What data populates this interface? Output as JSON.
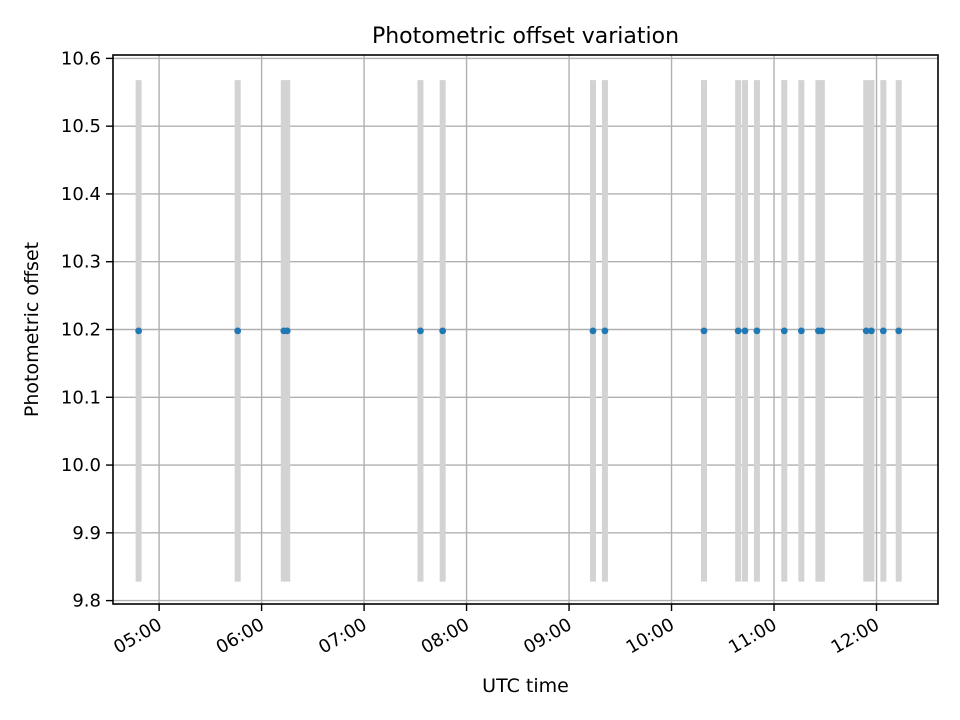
{
  "chart_data": {
    "type": "scatter",
    "title": "Photometric offset variation",
    "xlabel": "UTC time",
    "ylabel": "Photometric offset",
    "xlim": [
      "04:33",
      "12:36"
    ],
    "ylim": [
      9.795,
      10.605
    ],
    "x_ticks": [
      "05:00",
      "06:00",
      "07:00",
      "08:00",
      "09:00",
      "10:00",
      "11:00",
      "12:00"
    ],
    "y_ticks": [
      "9.8",
      "9.9",
      "10.0",
      "10.1",
      "10.2",
      "10.3",
      "10.4",
      "10.5",
      "10.6"
    ],
    "grid": true,
    "series": [
      {
        "x": [
          "04:48",
          "05:46",
          "06:13",
          "06:15",
          "07:33",
          "07:46",
          "09:14",
          "09:21",
          "10:19",
          "10:39",
          "10:43",
          "10:50",
          "11:06",
          "11:16",
          "11:26",
          "11:28",
          "11:54",
          "11:57",
          "12:04",
          "12:13"
        ],
        "y": [
          10.198,
          10.198,
          10.198,
          10.198,
          10.198,
          10.198,
          10.198,
          10.198,
          10.198,
          10.198,
          10.198,
          10.198,
          10.198,
          10.198,
          10.198,
          10.198,
          10.198,
          10.198,
          10.198,
          10.198
        ],
        "y_lower": [
          9.828,
          9.828,
          9.828,
          9.828,
          9.828,
          9.828,
          9.828,
          9.828,
          9.828,
          9.828,
          9.828,
          9.828,
          9.828,
          9.828,
          9.828,
          9.828,
          9.828,
          9.828,
          9.828,
          9.828
        ],
        "y_upper": [
          10.568,
          10.568,
          10.568,
          10.568,
          10.568,
          10.568,
          10.568,
          10.568,
          10.568,
          10.568,
          10.568,
          10.568,
          10.568,
          10.568,
          10.568,
          10.568,
          10.568,
          10.568,
          10.568,
          10.568
        ]
      }
    ],
    "colors": {
      "point": "#1f77b4",
      "errorbar": "#d3d3d3",
      "grid": "#b0b0b0"
    }
  }
}
